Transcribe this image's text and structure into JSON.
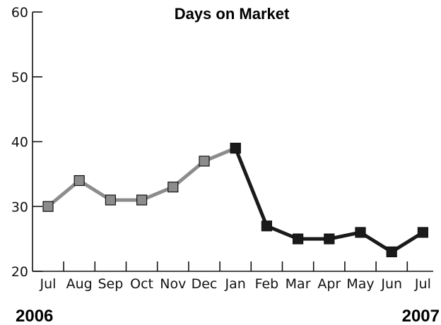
{
  "chart_data": {
    "type": "line",
    "title": "Days on Market",
    "xlabel": "",
    "ylabel": "",
    "categories": [
      "Jul",
      "Aug",
      "Sep",
      "Oct",
      "Nov",
      "Dec",
      "Jan",
      "Feb",
      "Mar",
      "Apr",
      "May",
      "Jun",
      "Jul"
    ],
    "year_labels": {
      "start": "2006",
      "end": "2007"
    },
    "ylim": [
      20,
      60
    ],
    "yticks": [
      20,
      30,
      40,
      50,
      60
    ],
    "grid": false,
    "series": [
      {
        "color": "#8c8c8c",
        "values": [
          30,
          34,
          31,
          31,
          33,
          37,
          39,
          null,
          null,
          null,
          null,
          null,
          null
        ]
      },
      {
        "color": "#1a1a1a",
        "values": [
          null,
          null,
          null,
          null,
          null,
          null,
          39,
          27,
          25,
          25,
          26,
          23,
          26
        ]
      }
    ]
  }
}
